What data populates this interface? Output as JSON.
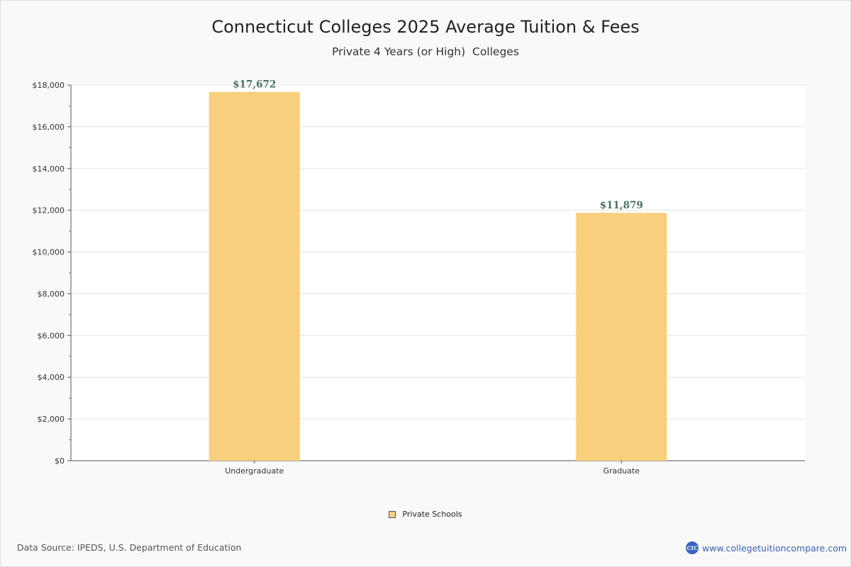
{
  "chart_data": {
    "type": "bar",
    "title": "Connecticut Colleges 2025 Average Tuition & Fees",
    "subtitle": "Private 4 Years (or High)  Colleges",
    "categories": [
      "Undergraduate",
      "Graduate"
    ],
    "series": [
      {
        "name": "Private Schools",
        "values": [
          17672,
          11879
        ],
        "color": "#f8cf7c"
      }
    ],
    "data_labels": [
      "$17,672",
      "$11,879"
    ],
    "ylim": [
      0,
      18000
    ],
    "y_ticks": [
      0,
      2000,
      4000,
      6000,
      8000,
      10000,
      12000,
      14000,
      16000,
      18000
    ],
    "y_tick_labels": [
      "$0",
      "$2,000",
      "$4,000",
      "$6,000",
      "$8,000",
      "$10,000",
      "$12,000",
      "$14,000",
      "$16,000",
      "$18,000"
    ],
    "grid": true,
    "legend_position": "bottom-center",
    "label_color": "#4a7060"
  },
  "footer": {
    "source": "Data Source: IPEDS, U.S. Department of Education",
    "brand_logo": "CTC",
    "brand_url": "www.collegetuitioncompare.com"
  }
}
